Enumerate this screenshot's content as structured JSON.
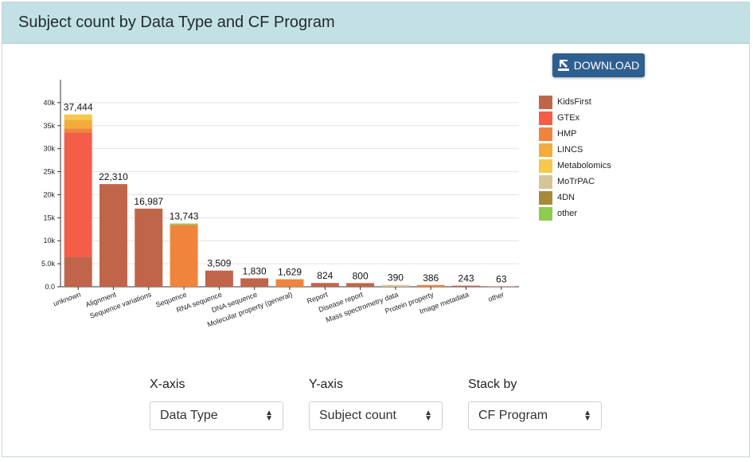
{
  "header": {
    "title": "Subject count by Data Type and CF Program"
  },
  "toolbar": {
    "download_label": "DOWNLOAD"
  },
  "legend": [
    {
      "label": "KidsFirst",
      "color": "#c1654a"
    },
    {
      "label": "GTEx",
      "color": "#f45d48"
    },
    {
      "label": "HMP",
      "color": "#f0843c"
    },
    {
      "label": "LINCS",
      "color": "#f3ac3c"
    },
    {
      "label": "Metabolomics",
      "color": "#f6c84b"
    },
    {
      "label": "MoTrPAC",
      "color": "#d4c59b"
    },
    {
      "label": "4DN",
      "color": "#a88a3b"
    },
    {
      "label": "other",
      "color": "#8fcb4f"
    }
  ],
  "controls": [
    {
      "label": "X-axis",
      "value": "Data Type"
    },
    {
      "label": "Y-axis",
      "value": "Subject count"
    },
    {
      "label": "Stack by",
      "value": "CF Program"
    }
  ],
  "chart_data": {
    "type": "bar",
    "stacked": true,
    "categories": [
      "unknown",
      "Alignment",
      "Sequence variations",
      "Sequence",
      "RNA sequence",
      "DNA sequence",
      "Molecular property (general)",
      "Report",
      "Disease report",
      "Mass spectrometry data",
      "Protein property",
      "Image metadata",
      "other"
    ],
    "totals": [
      "37,444",
      "22,310",
      "16,987",
      "13,743",
      "3,509",
      "1,830",
      "1,629",
      "824",
      "800",
      "390",
      "386",
      "243",
      "63"
    ],
    "series": [
      {
        "name": "KidsFirst",
        "color": "#c1654a",
        "values": [
          6500,
          22310,
          16987,
          0,
          3509,
          1830,
          0,
          824,
          800,
          0,
          0,
          243,
          63
        ]
      },
      {
        "name": "GTEx",
        "color": "#f45d48",
        "values": [
          27000,
          0,
          0,
          0,
          0,
          0,
          0,
          0,
          0,
          0,
          0,
          0,
          0
        ]
      },
      {
        "name": "HMP",
        "color": "#f0843c",
        "values": [
          900,
          0,
          0,
          13443,
          0,
          0,
          1629,
          0,
          0,
          0,
          386,
          0,
          0
        ]
      },
      {
        "name": "LINCS",
        "color": "#f3ac3c",
        "values": [
          1900,
          0,
          0,
          0,
          0,
          0,
          0,
          0,
          0,
          0,
          0,
          0,
          0
        ]
      },
      {
        "name": "Metabolomics",
        "color": "#f6c84b",
        "values": [
          1144,
          0,
          0,
          0,
          0,
          0,
          0,
          0,
          0,
          0,
          0,
          0,
          0
        ]
      },
      {
        "name": "MoTrPAC",
        "color": "#d4c59b",
        "values": [
          0,
          0,
          0,
          0,
          0,
          0,
          0,
          0,
          0,
          390,
          0,
          0,
          0
        ]
      },
      {
        "name": "4DN",
        "color": "#a88a3b",
        "values": [
          0,
          0,
          0,
          0,
          0,
          0,
          0,
          0,
          0,
          0,
          0,
          0,
          0
        ]
      },
      {
        "name": "other",
        "color": "#8fcb4f",
        "values": [
          0,
          0,
          0,
          300,
          0,
          0,
          0,
          0,
          0,
          0,
          0,
          0,
          0
        ]
      }
    ],
    "yticks": [
      0,
      5000,
      10000,
      15000,
      20000,
      25000,
      30000,
      35000,
      40000
    ],
    "ytick_labels": [
      "0.0",
      "5.0k",
      "10k",
      "15k",
      "20k",
      "25k",
      "30k",
      "35k",
      "40k"
    ],
    "ylim": [
      0,
      45000
    ],
    "grid": true,
    "legend_position": "right"
  }
}
